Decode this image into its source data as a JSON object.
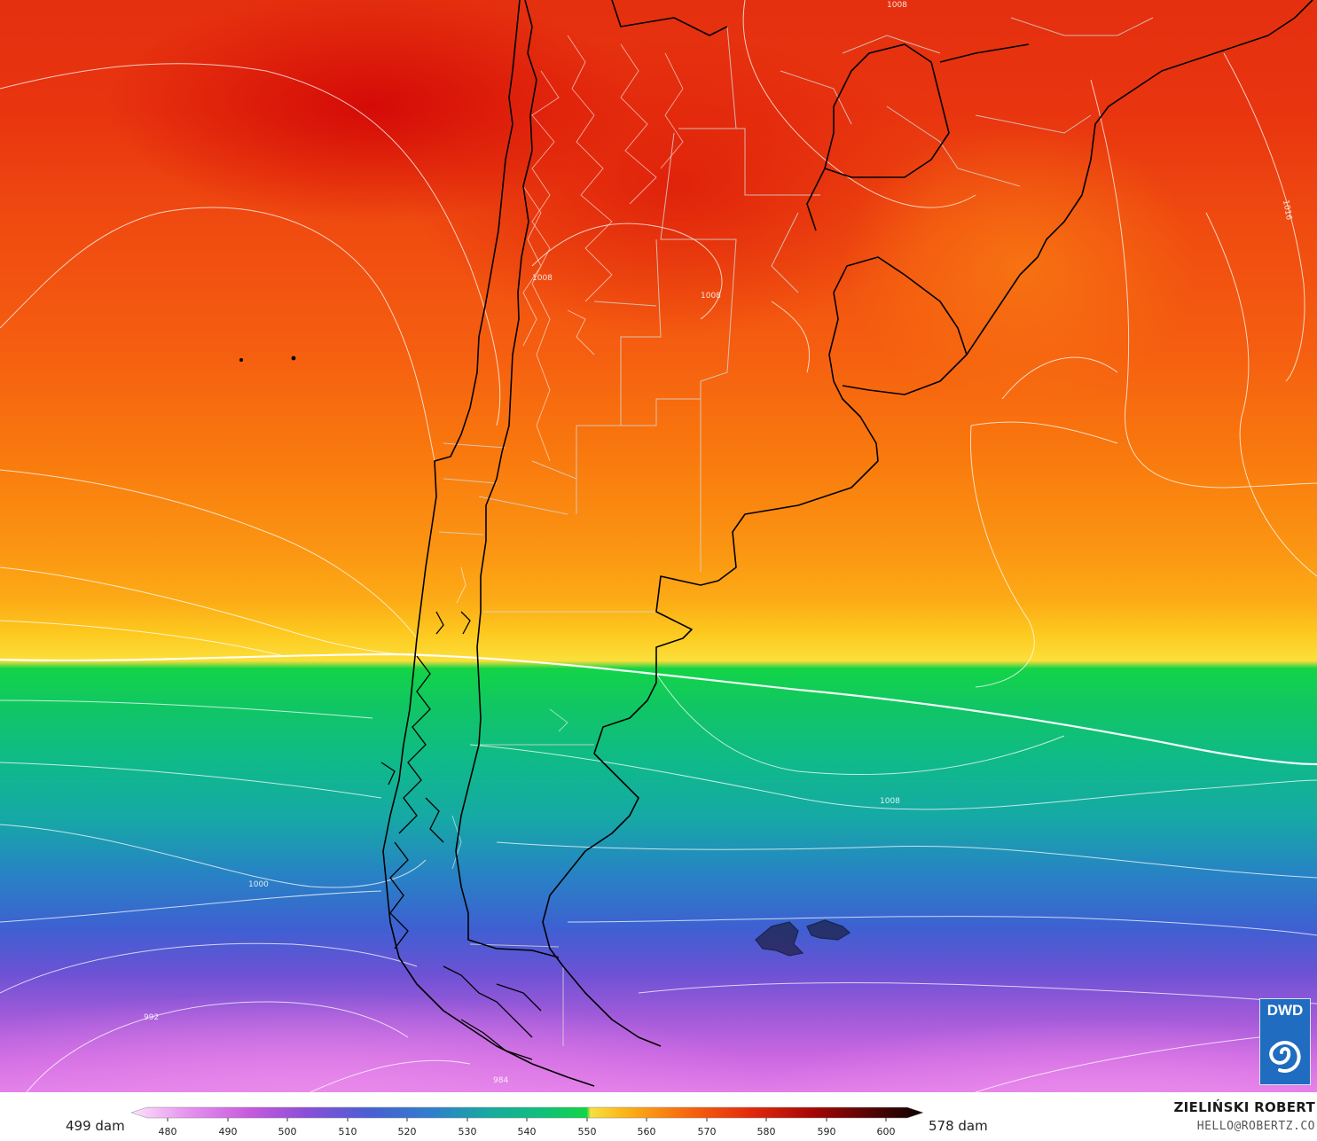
{
  "map": {
    "colors": {
      "h480": "#f5c6f8",
      "h490": "#dd72ea",
      "h500": "#b54ed6",
      "h510": "#6b52d4",
      "h520": "#2e6cd0",
      "h530": "#18a0b0",
      "h540": "#0fb98b",
      "h550": "#10d24a",
      "h552": "#f5e040",
      "h556": "#fcc61f",
      "h560": "#fba215",
      "h565": "#fb8a0e",
      "h570": "#f76710",
      "h575": "#ef4a10",
      "h580": "#e12a0f",
      "h585": "#d80e08",
      "coast": "#000000",
      "isobar": "#ffffff"
    },
    "isobar_labels": [
      "1008",
      "1016",
      "1008",
      "1008",
      "1008",
      "1000",
      "992",
      "984"
    ]
  },
  "legend": {
    "min_label": "499 dam",
    "max_label": "578 dam",
    "ticks": [
      "480",
      "490",
      "500",
      "510",
      "520",
      "530",
      "540",
      "550",
      "560",
      "570",
      "580",
      "590",
      "600"
    ],
    "stops": [
      "#fde3fb",
      "#e793ef",
      "#c65ade",
      "#8b4fd8",
      "#4a5fd3",
      "#2f7fcc",
      "#18a9a0",
      "#0fc07a",
      "#13d447",
      "#fbb818",
      "#f7690f",
      "#e32b0c",
      "#a60707",
      "#4c0404",
      "#0d0000"
    ]
  },
  "credit": {
    "name": "ZIELIŃSKI ROBERT",
    "email": "HELLO@ROBERTZ.CO"
  },
  "logo": {
    "text": "DWD",
    "bg_color": "#1f6cc0"
  }
}
